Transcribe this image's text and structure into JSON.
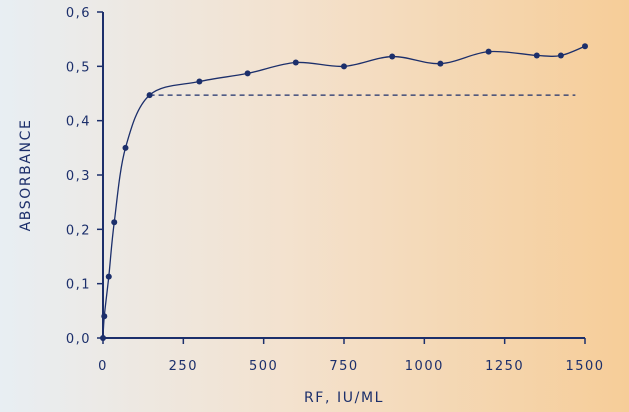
{
  "chart_data": {
    "type": "line",
    "xlabel": "RF, IU/ML",
    "ylabel": "ABSORBANCE",
    "xlim": [
      0,
      1500
    ],
    "ylim": [
      0,
      0.6
    ],
    "x_ticks": [
      0,
      250,
      500,
      750,
      1000,
      1250,
      1500
    ],
    "x_tick_labels": [
      "0",
      "250",
      "500",
      "750",
      "1000",
      "1250",
      "1500"
    ],
    "y_ticks": [
      0,
      0.1,
      0.2,
      0.3,
      0.4,
      0.5,
      0.6
    ],
    "y_tick_labels": [
      "0,0",
      "0,1",
      "0,2",
      "0,3",
      "0,4",
      "0,5",
      "0,6"
    ],
    "grid": false,
    "series": [
      {
        "values_x": [
          0,
          4,
          18,
          35,
          70,
          145,
          300,
          450,
          600,
          750,
          900,
          1050,
          1200,
          1350,
          1425,
          1500
        ],
        "values_y": [
          0.0,
          0.04,
          0.113,
          0.213,
          0.35,
          0.447,
          0.472,
          0.487,
          0.507,
          0.5,
          0.518,
          0.505,
          0.527,
          0.52,
          0.52,
          0.537
        ]
      }
    ],
    "reference_line": {
      "y": 0.447,
      "x_start": 145,
      "x_end": 1470,
      "style": "dashed"
    },
    "colors": {
      "line": "#1c2f6b",
      "text": "#1c2f6b"
    }
  }
}
